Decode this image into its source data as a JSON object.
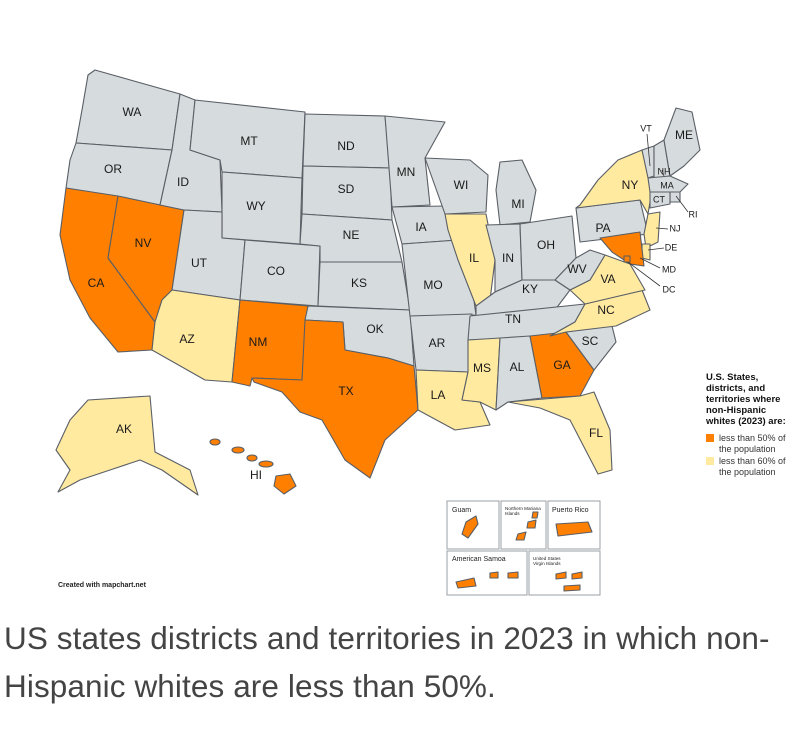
{
  "colors": {
    "majority_minority": "#ff7f00",
    "under_60": "#ffeaa0",
    "other": "#d6dbde",
    "border": "#5a5f66"
  },
  "legend": {
    "title": "U.S. States, districts, and territories where non-Hispanic whites (2023) are:",
    "items": [
      {
        "label": "less than 50% of the population",
        "color": "#ff7f00"
      },
      {
        "label": "less than 60% of the population",
        "color": "#ffeaa0"
      }
    ]
  },
  "states": [
    {
      "abbr": "WA",
      "category": "other"
    },
    {
      "abbr": "OR",
      "category": "other"
    },
    {
      "abbr": "CA",
      "category": "lt50"
    },
    {
      "abbr": "NV",
      "category": "lt50"
    },
    {
      "abbr": "ID",
      "category": "other"
    },
    {
      "abbr": "MT",
      "category": "other"
    },
    {
      "abbr": "WY",
      "category": "other"
    },
    {
      "abbr": "UT",
      "category": "other"
    },
    {
      "abbr": "AZ",
      "category": "lt60"
    },
    {
      "abbr": "CO",
      "category": "other"
    },
    {
      "abbr": "NM",
      "category": "lt50"
    },
    {
      "abbr": "ND",
      "category": "other"
    },
    {
      "abbr": "SD",
      "category": "other"
    },
    {
      "abbr": "NE",
      "category": "other"
    },
    {
      "abbr": "KS",
      "category": "other"
    },
    {
      "abbr": "OK",
      "category": "other"
    },
    {
      "abbr": "TX",
      "category": "lt50"
    },
    {
      "abbr": "MN",
      "category": "other"
    },
    {
      "abbr": "IA",
      "category": "other"
    },
    {
      "abbr": "MO",
      "category": "other"
    },
    {
      "abbr": "AR",
      "category": "other"
    },
    {
      "abbr": "LA",
      "category": "lt60"
    },
    {
      "abbr": "WI",
      "category": "other"
    },
    {
      "abbr": "IL",
      "category": "lt60"
    },
    {
      "abbr": "MI",
      "category": "other"
    },
    {
      "abbr": "IN",
      "category": "other"
    },
    {
      "abbr": "OH",
      "category": "other"
    },
    {
      "abbr": "KY",
      "category": "other"
    },
    {
      "abbr": "TN",
      "category": "other"
    },
    {
      "abbr": "MS",
      "category": "lt60"
    },
    {
      "abbr": "AL",
      "category": "other"
    },
    {
      "abbr": "GA",
      "category": "lt50"
    },
    {
      "abbr": "FL",
      "category": "lt60"
    },
    {
      "abbr": "SC",
      "category": "other"
    },
    {
      "abbr": "NC",
      "category": "lt60"
    },
    {
      "abbr": "VA",
      "category": "lt60"
    },
    {
      "abbr": "WV",
      "category": "other"
    },
    {
      "abbr": "PA",
      "category": "other"
    },
    {
      "abbr": "NY",
      "category": "lt60"
    },
    {
      "abbr": "VT",
      "category": "other"
    },
    {
      "abbr": "NH",
      "category": "other"
    },
    {
      "abbr": "ME",
      "category": "other"
    },
    {
      "abbr": "MA",
      "category": "other"
    },
    {
      "abbr": "RI",
      "category": "other"
    },
    {
      "abbr": "CT",
      "category": "other"
    },
    {
      "abbr": "NJ",
      "category": "lt60"
    },
    {
      "abbr": "DE",
      "category": "lt60"
    },
    {
      "abbr": "MD",
      "category": "lt50"
    },
    {
      "abbr": "DC",
      "category": "lt50"
    },
    {
      "abbr": "AK",
      "category": "lt60"
    },
    {
      "abbr": "HI",
      "category": "lt50"
    }
  ],
  "territories": [
    {
      "name": "Guam",
      "category": "lt50"
    },
    {
      "name": "Northern Mariana Islands",
      "category": "lt50"
    },
    {
      "name": "Puerto Rico",
      "category": "lt50"
    },
    {
      "name": "American Samoa",
      "category": "lt50"
    },
    {
      "name": "United States Virgin Islands",
      "category": "lt50"
    }
  ],
  "credit": "Created with mapchart.net",
  "caption": "US states districts and territories in 2023 in which non-Hispanic whites are less than 50%."
}
